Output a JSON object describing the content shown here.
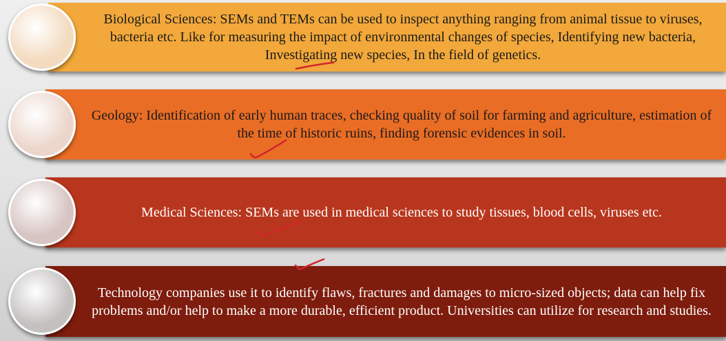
{
  "items": [
    {
      "text": "Biological Sciences: SEMs and TEMs can be used to inspect anything ranging from animal tissue to viruses, bacteria etc. Like for measuring the impact of environmental changes of species, Identifying new bacteria, Investigating new species, In the field of genetics.",
      "bar_color": "#f2a83a",
      "circle_color": "#f3dbbf",
      "text_color": "#1a1a1a"
    },
    {
      "text": "Geology: Identification of early human traces, checking quality of soil for farming and agriculture, estimation of the time of historic ruins, finding forensic evidences in soil.",
      "bar_color": "#ea6d25",
      "circle_color": "#ecd6cc",
      "text_color": "#1a1a1a"
    },
    {
      "text": "Medical Sciences: SEMs are used in medical sciences to study tissues, blood cells, viruses etc.",
      "bar_color": "#b8361d",
      "circle_color": "#d6c5c2",
      "text_color": "#ffffff"
    },
    {
      "text": "Technology companies use it to identify flaws, fractures and damages to micro-sized objects; data can help fix problems and/or help to make a more durable, efficient product. Universities can utilize for research and studies.",
      "bar_color": "#7e1c0d",
      "circle_color": "#c4c0c0",
      "text_color": "#ffffff"
    }
  ],
  "annotation_color": "#d4232b"
}
